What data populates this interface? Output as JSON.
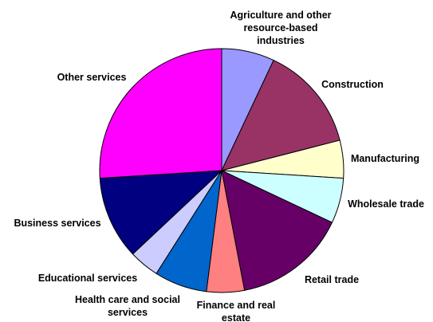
{
  "chart_data": {
    "type": "pie",
    "title": "",
    "slices": [
      {
        "label": "Agriculture and other resource-based industries",
        "label_lines": [
          "Agriculture and other",
          "resource-based",
          "industries"
        ],
        "value": 7,
        "color": "#9999FF"
      },
      {
        "label": "Construction",
        "label_lines": [
          "Construction"
        ],
        "value": 14,
        "color": "#993366"
      },
      {
        "label": "Manufacturing",
        "label_lines": [
          "Manufacturing"
        ],
        "value": 5,
        "color": "#FFFFCC"
      },
      {
        "label": "Wholesale trade",
        "label_lines": [
          "Wholesale trade"
        ],
        "value": 6,
        "color": "#CCFFFF"
      },
      {
        "label": "Retail trade",
        "label_lines": [
          "Retail trade"
        ],
        "value": 15,
        "color": "#660066"
      },
      {
        "label": "Finance and real estate",
        "label_lines": [
          "Finance and real",
          "estate"
        ],
        "value": 5,
        "color": "#FF8080"
      },
      {
        "label": "Health care and social services",
        "label_lines": [
          "Health care and social",
          "services"
        ],
        "value": 7,
        "color": "#0066CC"
      },
      {
        "label": "Educational services",
        "label_lines": [
          "Educational services"
        ],
        "value": 4,
        "color": "#CCCCFF"
      },
      {
        "label": "Business services",
        "label_lines": [
          "Business services"
        ],
        "value": 11,
        "color": "#000080"
      },
      {
        "label": "Other services",
        "label_lines": [
          "Other services"
        ],
        "value": 26,
        "color": "#FF00FF"
      }
    ]
  }
}
